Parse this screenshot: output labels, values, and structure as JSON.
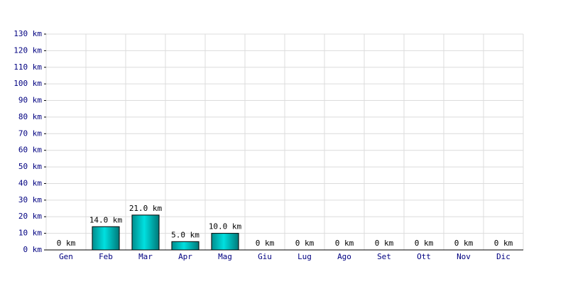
{
  "chart_data": {
    "type": "bar",
    "categories": [
      "Gen",
      "Feb",
      "Mar",
      "Apr",
      "Mag",
      "Giu",
      "Lug",
      "Ago",
      "Set",
      "Ott",
      "Nov",
      "Dic"
    ],
    "values": [
      0,
      14,
      21,
      5,
      10,
      0,
      0,
      0,
      0,
      0,
      0,
      0
    ],
    "value_labels": [
      "0 km",
      "14.0 km",
      "21.0 km",
      "5.0 km",
      "10.0 km",
      "0 km",
      "0 km",
      "0 km",
      "0 km",
      "0 km",
      "0 km",
      "0 km"
    ],
    "color": "#00e0e0",
    "ylim": [
      0,
      130
    ],
    "yticks": [
      {
        "value": 0,
        "label": "0 km"
      },
      {
        "value": 10,
        "label": "10 km"
      },
      {
        "value": 20,
        "label": "20 km"
      },
      {
        "value": 30,
        "label": "30 km"
      },
      {
        "value": 40,
        "label": "40 km"
      },
      {
        "value": 50,
        "label": "50 km"
      },
      {
        "value": 60,
        "label": "60 km"
      },
      {
        "value": 70,
        "label": "70 km"
      },
      {
        "value": 80,
        "label": "80 km"
      },
      {
        "value": 90,
        "label": "90 km"
      },
      {
        "value": 100,
        "label": "100 km"
      },
      {
        "value": 110,
        "label": "110 km"
      },
      {
        "value": 120,
        "label": "120 km"
      },
      {
        "value": 130,
        "label": "130 km"
      }
    ],
    "grid": true
  }
}
